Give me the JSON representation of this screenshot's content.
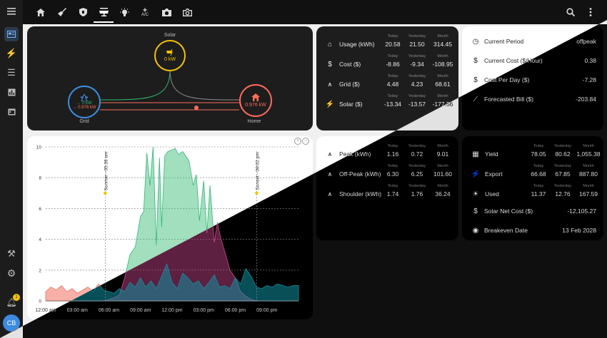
{
  "sidebar": {
    "menu_icon": "menu-icon",
    "items": [
      "overview-icon",
      "energy-icon",
      "list-icon",
      "history-icon",
      "calendar-icon"
    ],
    "bottom": [
      "tools-icon",
      "settings-icon",
      "notifications-icon"
    ],
    "notification_count": "1",
    "avatar": "CB"
  },
  "topbar": {
    "icons": [
      "home-icon",
      "broom-icon",
      "shield-icon",
      "solar-panel-icon",
      "bulb-icon",
      "aircon-icon",
      "camera-icon",
      "camera-outline-icon"
    ],
    "aircon_label": "A/C",
    "active_index": 3
  },
  "flow": {
    "solar_label": "Solar",
    "solar_value": "0 kW",
    "grid_label": "Grid",
    "grid_in": "← 0 kW",
    "grid_out": "→ 0.976 kW",
    "home_label": "Home",
    "home_value": "0.976 kW"
  },
  "chart_data": {
    "type": "area",
    "x_ticks": [
      "12:00 am",
      "03:00 am",
      "06:00 am",
      "09:00 am",
      "12:00 pm",
      "03:00 pm",
      "06:00 pm",
      "09:00 pm"
    ],
    "y_ticks": [
      "0",
      "2",
      "4",
      "6",
      "8",
      "10"
    ],
    "ylim": [
      0,
      10
    ],
    "annotations": [
      "Sunrise - 05:39 am",
      "Sunset - 08:02 pm"
    ],
    "series": [
      {
        "color": "#2eb872",
        "x": [
          0,
          5.6,
          6,
          6.5,
          7,
          7.5,
          8,
          8.5,
          9,
          9.3,
          9.6,
          9.9,
          10.2,
          10.5,
          10.8,
          11,
          11.3,
          11.6,
          12,
          12.3,
          12.6,
          13,
          13.3,
          13.6,
          14,
          14.3,
          14.6,
          15,
          15.3,
          15.6,
          16,
          16.3,
          16.6,
          17,
          17.5,
          18,
          18.5,
          19,
          19.5,
          20.05
        ],
        "y": [
          0,
          0,
          0.1,
          0.2,
          0.4,
          1.5,
          3,
          3.5,
          5.5,
          5.8,
          9.6,
          7.5,
          10,
          3.6,
          9.3,
          4.8,
          9.4,
          9.7,
          9.8,
          9.9,
          9.5,
          9.7,
          9.4,
          9.1,
          7.5,
          8.2,
          5.2,
          7.8,
          4.4,
          7.5,
          3.8,
          5.1,
          4.1,
          3.2,
          2,
          1.5,
          0.6,
          0.3,
          0.1,
          0
        ]
      },
      {
        "color": "#f07060",
        "x": [
          0,
          0.5,
          1,
          1.5,
          2,
          2.5,
          3,
          3.5,
          4,
          4.5,
          5,
          5.5,
          6,
          6.5,
          7,
          7.5,
          8,
          8.5,
          9,
          9.5,
          10,
          10.5,
          11,
          11.5,
          12,
          12.5,
          13,
          13.5,
          14,
          14.5,
          15,
          15.5,
          16,
          16.5,
          17,
          17.5,
          18,
          18.5,
          19,
          19.5,
          20,
          20.5,
          21,
          21.5,
          22,
          22.5,
          23,
          23.5,
          24
        ],
        "y": [
          0.6,
          0.9,
          0.7,
          1.0,
          0.6,
          0.8,
          0.5,
          0.7,
          0.9,
          0.6,
          1.1,
          0.7,
          0.6,
          0.5,
          0.8,
          0.6,
          1.2,
          0.9,
          1.5,
          0.9,
          1.3,
          0.8,
          1.6,
          2.4,
          1.2,
          0.8,
          1.8,
          1.5,
          1.1,
          1.3,
          0.8,
          1.2,
          1.7,
          0.9,
          1.0,
          0.8,
          1.5,
          1.1,
          2.1,
          1.6,
          0.9,
          0.8,
          1.0,
          0.9,
          1.1,
          1.0,
          0.9,
          1.0,
          1.0
        ]
      }
    ]
  },
  "usage": {
    "headers": [
      "Today",
      "Yesterday",
      "Month"
    ],
    "rows": [
      {
        "icon": "home-icon",
        "label": "Usage (kWh)",
        "values": [
          "20.58",
          "21.50",
          "314.45"
        ]
      },
      {
        "icon": "dollar-icon",
        "label": "Cost ($)",
        "values": [
          "-8.86",
          "-9.34",
          "-108.95"
        ]
      },
      {
        "icon": "transmission-tower-icon",
        "label": "Grid ($)",
        "values": [
          "4.48",
          "4.23",
          "68.61"
        ]
      },
      {
        "icon": "solar-power-icon",
        "label": "Solar ($)",
        "values": [
          "-13.34",
          "-13.57",
          "-177.56"
        ]
      }
    ]
  },
  "period": {
    "rows": [
      {
        "icon": "clock-icon",
        "label": "Current Period",
        "value": "offpeak"
      },
      {
        "icon": "dollar-icon",
        "label": "Current Cost ($/Hour)",
        "value": "0.38"
      },
      {
        "icon": "dollar-icon",
        "label": "Cost Per Day ($)",
        "value": "-7.28"
      },
      {
        "icon": "chart-line-icon",
        "label": "Forecasted Bill ($)",
        "value": "-203.84"
      }
    ]
  },
  "tariff": {
    "headers": [
      "Today",
      "Yesterday",
      "Month"
    ],
    "rows": [
      {
        "icon": "transmission-tower-icon",
        "label": "Peak (kWh)",
        "values": [
          "1.16",
          "0.72",
          "9.01"
        ]
      },
      {
        "icon": "transmission-tower-icon",
        "label": "Off-Peak (kWh)",
        "values": [
          "6.30",
          "6.25",
          "101.60"
        ]
      },
      {
        "icon": "transmission-tower-icon",
        "label": "Shoulder (kWh)",
        "values": [
          "1.74",
          "1.76",
          "36.24"
        ]
      }
    ]
  },
  "solar": {
    "headers": [
      "Today",
      "Yesterday",
      "Month"
    ],
    "rows": [
      {
        "icon": "solar-panel-icon",
        "label": "Yield",
        "values": [
          "78.05",
          "80.62",
          "1,055.38"
        ]
      },
      {
        "icon": "solar-power-icon",
        "label": "Export",
        "values": [
          "66.68",
          "67.85",
          "887.80"
        ]
      },
      {
        "icon": "sun-icon",
        "label": "Used",
        "values": [
          "11.37",
          "12.76",
          "167.59"
        ]
      }
    ],
    "net_label": "Solar Net Cost ($)",
    "net_value": "-12,105.27",
    "breakeven_label": "Breakeven Date",
    "breakeven_value": "13 Feb 2028"
  }
}
